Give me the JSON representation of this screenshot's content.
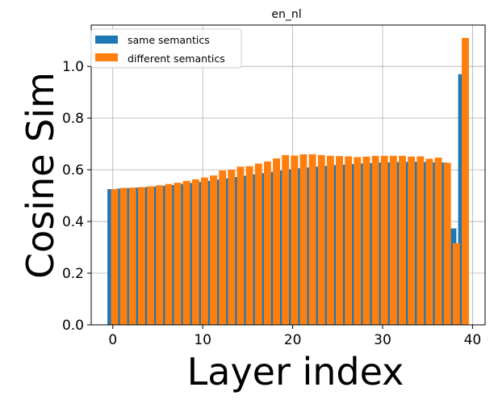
{
  "chart_data": {
    "type": "bar",
    "title": "en_nl",
    "xlabel": "Layer index",
    "ylabel": "Cosine Sim",
    "xlim": [
      -2.4,
      41.4
    ],
    "ylim": [
      0.0,
      1.16
    ],
    "xticks": [
      0,
      10,
      20,
      30,
      40
    ],
    "yticks": [
      0.0,
      0.2,
      0.4,
      0.6,
      0.8,
      1.0
    ],
    "xtick_labels": [
      "0",
      "10",
      "20",
      "30",
      "40"
    ],
    "ytick_labels": [
      "0.0",
      "0.2",
      "0.4",
      "0.6",
      "0.8",
      "1.0"
    ],
    "grid": true,
    "legend_position": "top-left",
    "x": [
      0,
      1,
      2,
      3,
      4,
      5,
      6,
      7,
      8,
      9,
      10,
      11,
      12,
      13,
      14,
      15,
      16,
      17,
      18,
      19,
      20,
      21,
      22,
      23,
      24,
      25,
      26,
      27,
      28,
      29,
      30,
      31,
      32,
      33,
      34,
      35,
      36,
      37,
      38,
      39
    ],
    "series": [
      {
        "name": "same semantics",
        "color": "#1f77b4",
        "offset": -0.2,
        "values": [
          0.525,
          0.527,
          0.529,
          0.531,
          0.533,
          0.535,
          0.538,
          0.541,
          0.545,
          0.549,
          0.553,
          0.557,
          0.562,
          0.567,
          0.572,
          0.577,
          0.582,
          0.587,
          0.592,
          0.597,
          0.602,
          0.606,
          0.609,
          0.612,
          0.615,
          0.618,
          0.62,
          0.622,
          0.624,
          0.626,
          0.628,
          0.629,
          0.63,
          0.631,
          0.631,
          0.63,
          0.629,
          0.628,
          0.373,
          0.97
        ]
      },
      {
        "name": "different semantics",
        "color": "#ff7f0e",
        "offset": 0.2,
        "values": [
          0.525,
          0.53,
          0.531,
          0.533,
          0.536,
          0.54,
          0.545,
          0.55,
          0.557,
          0.563,
          0.57,
          0.578,
          0.597,
          0.6,
          0.612,
          0.614,
          0.624,
          0.632,
          0.644,
          0.657,
          0.655,
          0.66,
          0.66,
          0.657,
          0.654,
          0.653,
          0.652,
          0.649,
          0.651,
          0.654,
          0.654,
          0.654,
          0.654,
          0.651,
          0.652,
          0.643,
          0.647,
          0.627,
          0.316,
          1.11
        ]
      }
    ]
  }
}
